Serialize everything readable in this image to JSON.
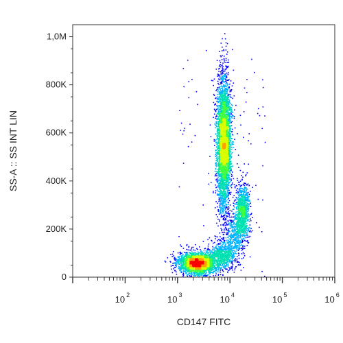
{
  "chart_data": {
    "type": "scatter",
    "subtype": "flow-cytometry density dot plot",
    "xlabel": "CD147 FITC",
    "ylabel": "SS-A :: SS INT LIN",
    "x_scale": "log",
    "xlim": [
      10,
      1000000
    ],
    "x_tick_labels": [
      {
        "base": "10",
        "exp": "2",
        "value": 100
      },
      {
        "base": "10",
        "exp": "3",
        "value": 1000
      },
      {
        "base": "10",
        "exp": "4",
        "value": 10000
      },
      {
        "base": "10",
        "exp": "5",
        "value": 100000
      },
      {
        "base": "10",
        "exp": "6",
        "value": 1000000
      }
    ],
    "y_scale": "linear",
    "ylim": [
      0,
      1050000
    ],
    "y_tick_labels": [
      {
        "label": "0",
        "value": 0
      },
      {
        "label": "200K",
        "value": 200000
      },
      {
        "label": "400K",
        "value": 400000
      },
      {
        "label": "600K",
        "value": 600000
      },
      {
        "label": "800K",
        "value": 800000
      },
      {
        "label": "1,0M",
        "value": 1000000
      }
    ],
    "grid": false,
    "density_colormap": [
      "#0000ff",
      "#00b4ff",
      "#00e0b0",
      "#40ff40",
      "#d8ff00",
      "#ffa000",
      "#ff0000"
    ],
    "populations": [
      {
        "x_center": 7500,
        "x_log_sd": 0.06,
        "y_center": 560000,
        "y_sd": 140000,
        "count": 4200
      },
      {
        "x_center": 2400,
        "x_log_sd": 0.17,
        "y_center": 60000,
        "y_sd": 22000,
        "count": 2600
      },
      {
        "x_center": 17000,
        "x_log_sd": 0.06,
        "y_center": 270000,
        "y_sd": 60000,
        "count": 1100
      },
      {
        "x_center": 7000,
        "x_log_sd": 0.12,
        "y_center": 90000,
        "y_sd": 30000,
        "count": 700
      },
      {
        "x_center": 12000,
        "x_log_sd": 0.08,
        "y_center": 170000,
        "y_sd": 45000,
        "count": 400
      }
    ]
  }
}
